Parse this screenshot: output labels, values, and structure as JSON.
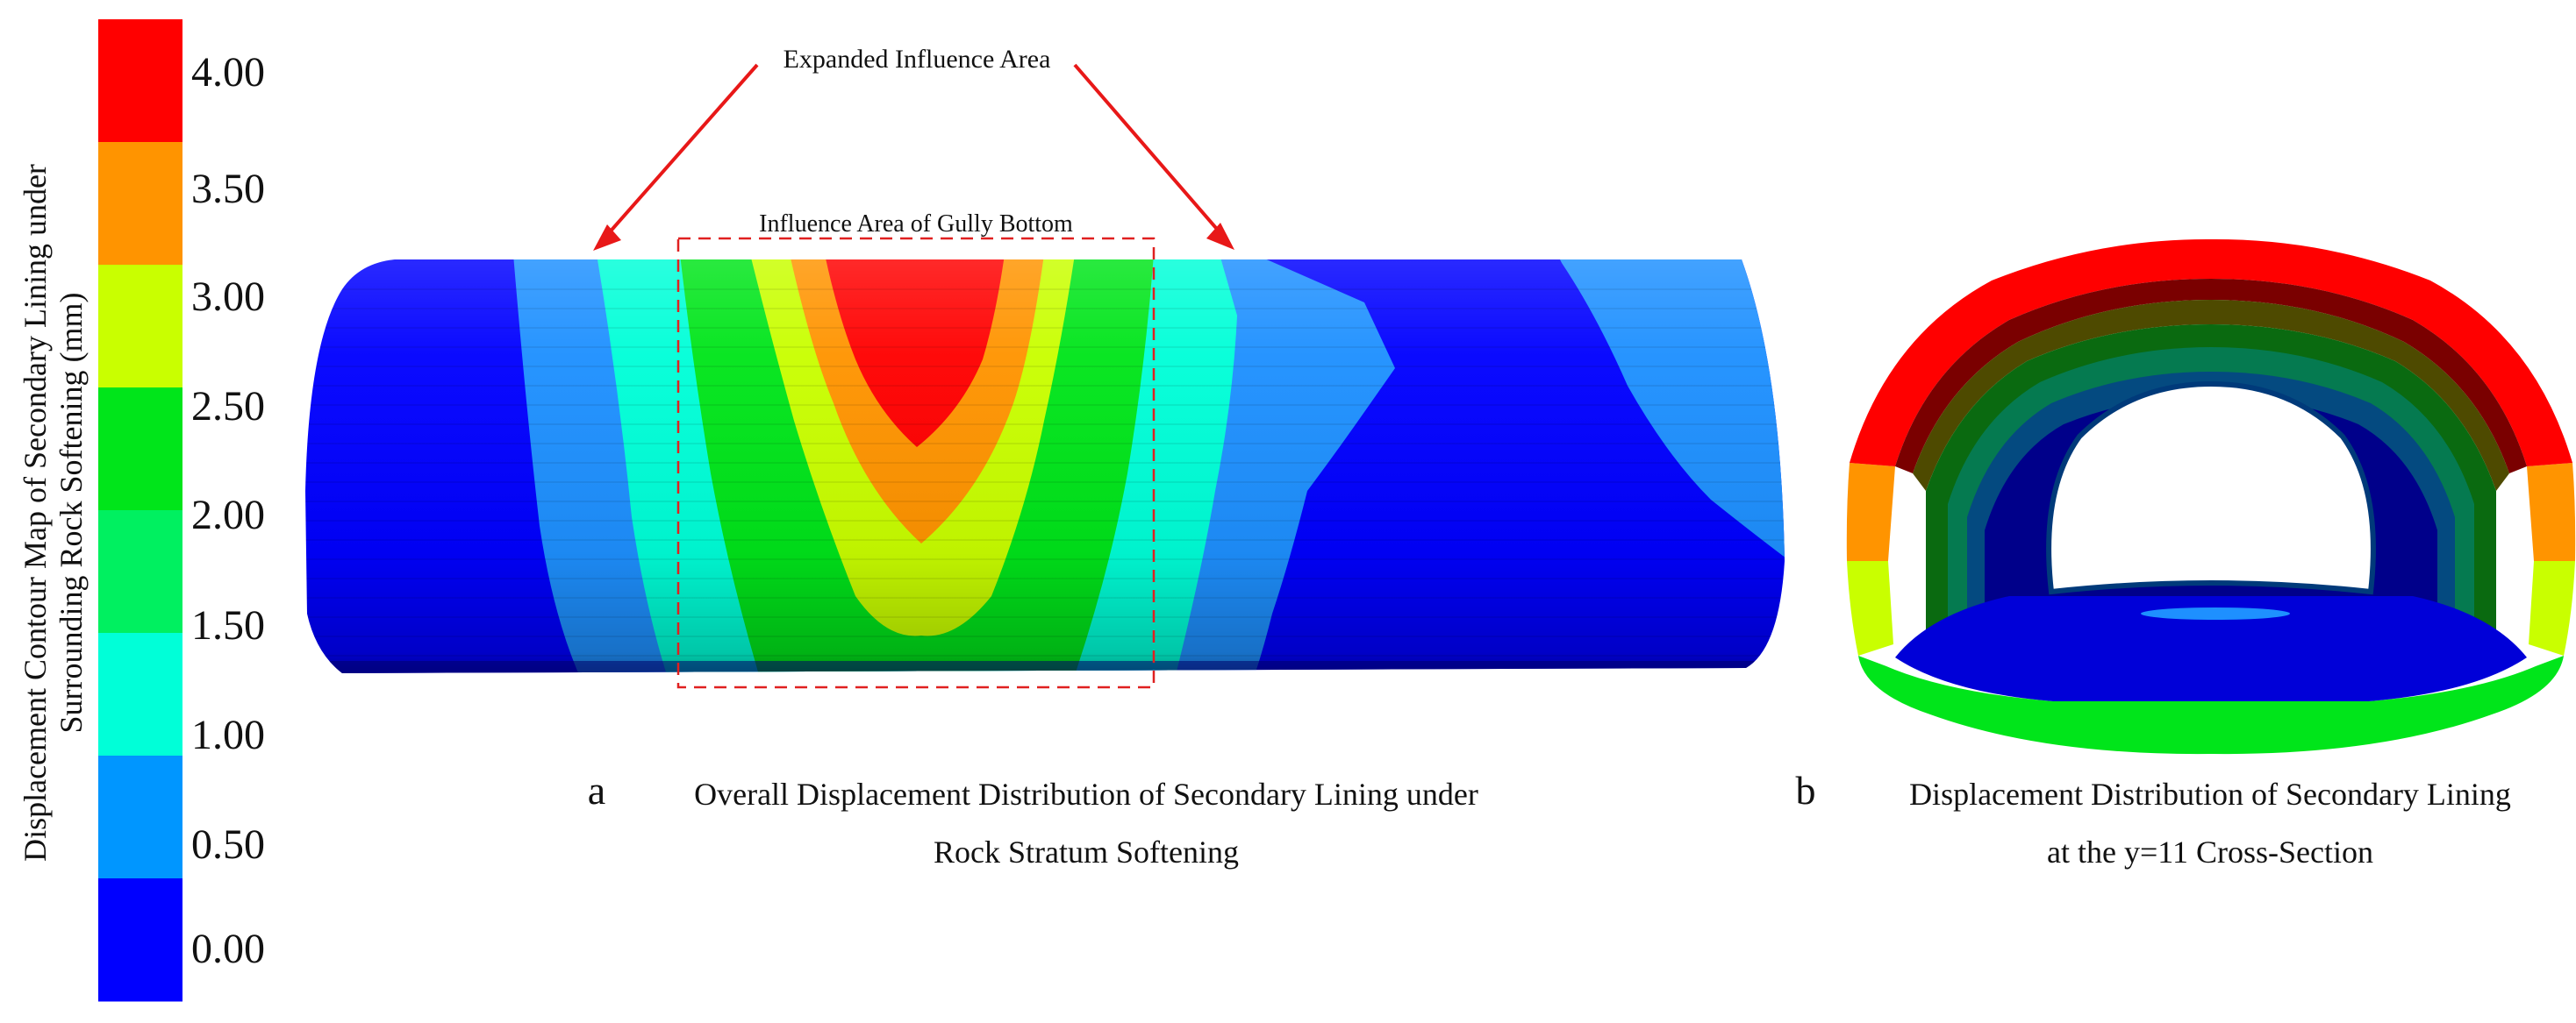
{
  "colorbar": {
    "title_line1": "Displacement Contour Map of Secondary Lining under",
    "title_line2": "Surrounding Rock Softening (mm)",
    "ticks": [
      "4.00",
      "3.50",
      "3.00",
      "2.50",
      "2.00",
      "1.50",
      "1.00",
      "0.50",
      "0.00"
    ],
    "band_colors": [
      "#ff0000",
      "#ff9400",
      "#c9ff00",
      "#00e51a",
      "#00f060",
      "#00ffd8",
      "#0096ff",
      "#0000ff"
    ]
  },
  "panel_a": {
    "annotation_expanded": "Expanded Influence Area",
    "annotation_gully": "Influence Area of Gully Bottom",
    "letter": "a",
    "caption_line1": "Overall Displacement Distribution of Secondary Lining under",
    "caption_line2": "Rock Stratum Softening"
  },
  "panel_b": {
    "letter": "b",
    "caption_line1": "Displacement Distribution of Secondary Lining",
    "caption_line2": "at the y=11 Cross-Section"
  },
  "colors": {
    "arrow": "#e81818",
    "dashed_box": "#e02020",
    "blue": "#0000ff",
    "light_blue": "#1e90ff",
    "cyan": "#00ffd8",
    "green": "#00e51a",
    "yellow_green": "#c9ff00",
    "orange": "#ff9400",
    "red": "#ff0000"
  }
}
